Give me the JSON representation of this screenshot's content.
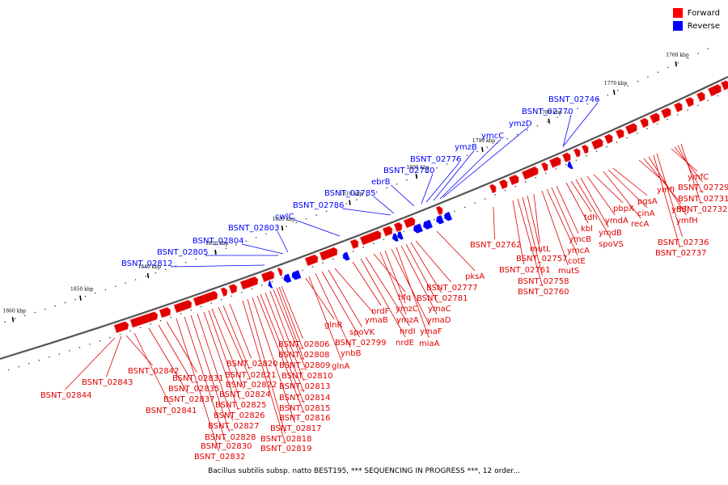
{
  "legend": {
    "forward_label": "Forward",
    "reverse_label": "Reverse",
    "forward_color": "#ff0000",
    "reverse_color": "#0000ff"
  },
  "colors": {
    "backbone": "#555555",
    "forward": "#e00000",
    "forward_light": "#ff6a6a",
    "reverse": "#0000ff"
  },
  "caption": "Bacillus subtilis subsp. natto BEST195, *** SEQUENCING IN PROGRESS ***, 12 order...",
  "scale_labels": [
    "1860 kbp",
    "1850 kbp",
    "1840 kbp",
    "1830 kbp",
    "1820 kbp",
    "1810 kbp",
    "1800 kbp",
    "1790 kbp",
    "1780 kbp",
    "1770 kbp",
    "1760 kbp"
  ],
  "reverse_genes": [
    "BSNT_02746",
    "BSNT_02770",
    "ymzD",
    "ymcC",
    "ymzB",
    "BSNT_02776",
    "BSNT_02780",
    "ebrB",
    "BSNT_02785",
    "BSNT_02786",
    "cwlC",
    "BSNT_02803",
    "BSNT_02804",
    "BSNT_02805",
    "BSNT_02812"
  ],
  "forward_genes": [
    "BSNT_02844",
    "BSNT_02843",
    "BSNT_02842",
    "BSNT_02841",
    "BSNT_02837",
    "BSNT_02835",
    "BSNT_02831",
    "BSNT_02832",
    "BSNT_02830",
    "BSNT_02828",
    "BSNT_02827",
    "BSNT_02826",
    "BSNT_02825",
    "BSNT_02824",
    "BSNT_02822",
    "BSNT_02821",
    "BSNT_02820",
    "BSNT_02819",
    "BSNT_02818",
    "BSNT_02817",
    "BSNT_02816",
    "BSNT_02815",
    "BSNT_02814",
    "BSNT_02813",
    "BSNT_02810",
    "BSNT_02809",
    "BSNT_02808",
    "BSNT_02806",
    "glnA",
    "ynbB",
    "glnR",
    "BSNT_02799",
    "spoVK",
    "ymaB",
    "nrdF",
    "nrdE",
    "nrdI",
    "hfq",
    "ymzA",
    "ymzC",
    "ymaF",
    "miaA",
    "ymaD",
    "ymaC",
    "BSNT_02781",
    "BSNT_02777",
    "pksA",
    "BSNT_02762",
    "BSNT_02761",
    "BSNT_02760",
    "BSNT_02758",
    "BSNT_02757",
    "mutL",
    "mutS",
    "cotE",
    "ymcA",
    "ymcB",
    "kbl",
    "tdh",
    "spoVS",
    "ymdB",
    "ymdA",
    "pbpX",
    "recA",
    "cinA",
    "pgsA",
    "ymfI",
    "ymfJ",
    "ymfH",
    "BSNT_02737",
    "BSNT_02736",
    "ymfC",
    "BSNT_02729",
    "BSNT_02731",
    "BSNT_02732"
  ]
}
